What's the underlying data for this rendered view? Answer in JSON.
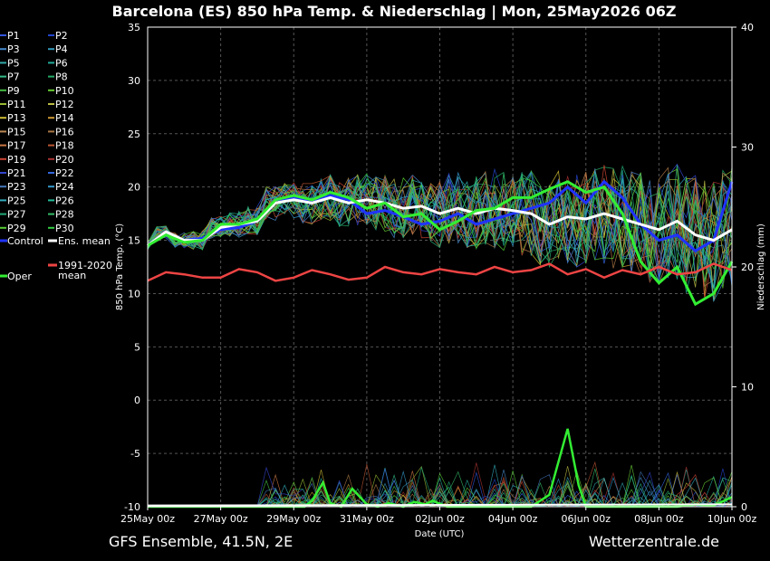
{
  "chart_data": {
    "type": "line",
    "title": "Barcelona  (ES)  850 hPa Temp. & Niederschlag | Mon, 25May2026 06Z",
    "ylabel": "850 hPa Temp. (°C)",
    "y2label": "Niederschlag (mm)",
    "xlabel": "Date (UTC)",
    "footer_left": "GFS Ensemble, 41.5N, 2E",
    "footer_right": "Wetterzentrale.de",
    "ylim": [
      -10,
      35
    ],
    "y2lim": [
      0,
      40
    ],
    "y_ticks": [
      "35",
      "30",
      "25",
      "20",
      "15",
      "10",
      "5",
      "0",
      "-5",
      "-10"
    ],
    "y2_ticks": [
      "40",
      "30",
      "20",
      "10",
      "0"
    ],
    "x_tick_labels": [
      "25May 00z",
      "27May 00z",
      "29May 00z",
      "31May 00z",
      "02Jun 00z",
      "04Jun 00z",
      "06Jun 00z",
      "08Jun 00z",
      "10Jun 00z"
    ],
    "grid": true,
    "legend_position": "left",
    "legend": [
      {
        "name": "P1",
        "color": "#3355dd"
      },
      {
        "name": "P2",
        "color": "#2244cc"
      },
      {
        "name": "P3",
        "color": "#4488cc"
      },
      {
        "name": "P4",
        "color": "#3399bb"
      },
      {
        "name": "P5",
        "color": "#33aaaa"
      },
      {
        "name": "P6",
        "color": "#22aa99"
      },
      {
        "name": "P7",
        "color": "#33bb88"
      },
      {
        "name": "P8",
        "color": "#22aa66"
      },
      {
        "name": "P9",
        "color": "#44bb44"
      },
      {
        "name": "P10",
        "color": "#66cc33"
      },
      {
        "name": "P11",
        "color": "#99bb33"
      },
      {
        "name": "P12",
        "color": "#bbbb44"
      },
      {
        "name": "P13",
        "color": "#ccbb33"
      },
      {
        "name": "P14",
        "color": "#cc9933"
      },
      {
        "name": "P15",
        "color": "#bb8855"
      },
      {
        "name": "P16",
        "color": "#aa7744"
      },
      {
        "name": "P17",
        "color": "#cc7744"
      },
      {
        "name": "P18",
        "color": "#bb5533"
      },
      {
        "name": "P19",
        "color": "#cc4433"
      },
      {
        "name": "P20",
        "color": "#aa3333"
      },
      {
        "name": "P21",
        "color": "#3344cc"
      },
      {
        "name": "P22",
        "color": "#3366dd"
      },
      {
        "name": "P23",
        "color": "#4477bb"
      },
      {
        "name": "P24",
        "color": "#3399cc"
      },
      {
        "name": "P25",
        "color": "#33aabb"
      },
      {
        "name": "P26",
        "color": "#22bb99"
      },
      {
        "name": "P27",
        "color": "#22aa77"
      },
      {
        "name": "P28",
        "color": "#33bb66"
      },
      {
        "name": "P29",
        "color": "#55cc33"
      },
      {
        "name": "P30",
        "color": "#33cc44"
      },
      {
        "name": "Control",
        "color": "#1f33ff"
      },
      {
        "name": "Ens. mean",
        "color": "#ffffff"
      },
      {
        "name": "1991-2020\nmean",
        "color": "#ee4444"
      },
      {
        "name": "Oper",
        "color": "#33ee33"
      }
    ],
    "series": [
      {
        "name": "Control",
        "color": "#1f33ff",
        "x": [
          0,
          0.5,
          1,
          1.5,
          2,
          2.5,
          3,
          3.5,
          4,
          4.5,
          5,
          5.5,
          6,
          6.5,
          7,
          7.5,
          8,
          8.5,
          9,
          9.5,
          10,
          10.5,
          11,
          11.5,
          12,
          12.5,
          13,
          13.5,
          14,
          14.5,
          15,
          15.5,
          16
        ],
        "values": [
          14.5,
          15.8,
          15.0,
          15.2,
          16.0,
          16.2,
          16.8,
          18.8,
          19.0,
          18.5,
          19.2,
          18.8,
          17.5,
          17.8,
          17.2,
          16.5,
          16.8,
          17.5,
          16.5,
          17.0,
          17.5,
          18.0,
          18.5,
          20.0,
          18.5,
          20.5,
          19.0,
          16.5,
          15.0,
          15.5,
          14.0,
          15.0,
          20.5
        ]
      },
      {
        "name": "Ens. mean",
        "color": "#ffffff",
        "x": [
          0,
          0.5,
          1,
          1.5,
          2,
          2.5,
          3,
          3.5,
          4,
          4.5,
          5,
          5.5,
          6,
          6.5,
          7,
          7.5,
          8,
          8.5,
          9,
          9.5,
          10,
          10.5,
          11,
          11.5,
          12,
          12.5,
          13,
          13.5,
          14,
          14.5,
          15,
          15.5,
          16
        ],
        "values": [
          14.5,
          15.8,
          15.0,
          15.0,
          16.2,
          16.5,
          16.8,
          18.5,
          18.8,
          18.5,
          19.0,
          18.5,
          18.8,
          18.5,
          18.0,
          18.2,
          17.5,
          18.0,
          17.5,
          18.0,
          17.8,
          17.5,
          16.5,
          17.2,
          17.0,
          17.5,
          17.0,
          16.5,
          16.0,
          16.8,
          15.5,
          15.0,
          16.0
        ]
      },
      {
        "name": "Oper",
        "color": "#33ee33",
        "x": [
          0,
          0.5,
          1,
          1.5,
          2,
          2.5,
          3,
          3.5,
          4,
          4.5,
          5,
          5.5,
          6,
          6.5,
          7,
          7.5,
          8,
          8.5,
          9,
          9.5,
          10,
          10.5,
          11,
          11.5,
          12,
          12.5,
          13,
          13.5,
          14,
          14.5,
          15,
          15.5,
          16
        ],
        "values": [
          14.5,
          15.5,
          14.8,
          15.0,
          16.5,
          16.5,
          17.0,
          18.8,
          19.2,
          18.8,
          19.5,
          19.0,
          18.0,
          18.5,
          17.2,
          17.5,
          16.0,
          16.8,
          17.8,
          18.0,
          19.0,
          19.0,
          19.8,
          20.5,
          19.5,
          20.0,
          17.5,
          13.0,
          11.0,
          12.5,
          9.0,
          10.0,
          13.0
        ]
      },
      {
        "name": "1991-2020 mean",
        "color": "#ee4444",
        "x": [
          0,
          0.5,
          1,
          1.5,
          2,
          2.5,
          3,
          3.5,
          4,
          4.5,
          5,
          5.5,
          6,
          6.5,
          7,
          7.5,
          8,
          8.5,
          9,
          9.5,
          10,
          10.5,
          11,
          11.5,
          12,
          12.5,
          13,
          13.5,
          14,
          14.5,
          15,
          15.5,
          16
        ],
        "values": [
          11.2,
          12.0,
          11.8,
          11.5,
          11.5,
          12.3,
          12.0,
          11.2,
          11.5,
          12.2,
          11.8,
          11.3,
          11.5,
          12.5,
          12.0,
          11.8,
          12.3,
          12.0,
          11.8,
          12.5,
          12.0,
          12.2,
          12.8,
          11.8,
          12.3,
          11.5,
          12.2,
          11.8,
          12.5,
          11.8,
          12.0,
          12.8,
          12.2
        ]
      }
    ],
    "precipitation": {
      "oper_x": [
        0,
        3,
        3.5,
        4,
        4.3,
        4.5,
        4.8,
        5,
        5.3,
        5.6,
        6,
        6.3,
        6.6,
        7,
        7.3,
        7.6,
        7.8,
        8.2,
        8.5,
        9,
        9.5,
        9.8,
        10,
        10.5,
        11,
        11.5,
        11.8,
        12,
        12.3,
        12.6,
        13,
        13.5,
        14,
        14.5,
        15,
        15.5,
        16
      ],
      "oper_mm": [
        0,
        0,
        0,
        0,
        0,
        0.5,
        2.0,
        0.3,
        0,
        1.5,
        0.2,
        0,
        0.3,
        0,
        0.4,
        0.2,
        0.5,
        0,
        0,
        0,
        0,
        0,
        0,
        0,
        1.0,
        6.5,
        1.8,
        0,
        0,
        0,
        0,
        0,
        0,
        0,
        0.2,
        0.1,
        0.8
      ]
    }
  }
}
